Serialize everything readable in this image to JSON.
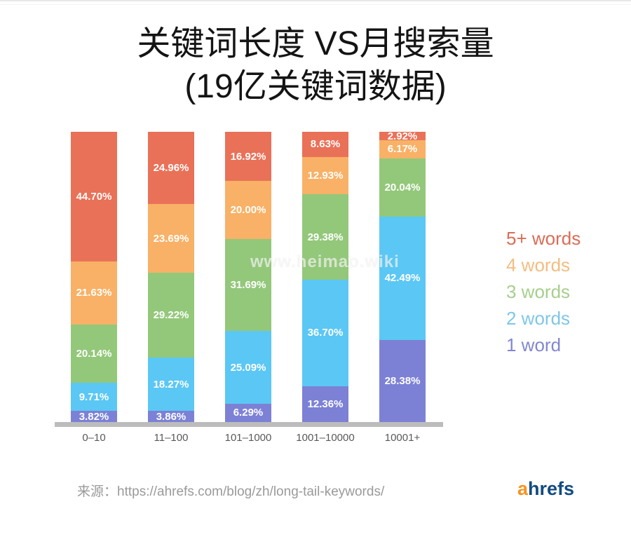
{
  "page": {
    "title_line1": "关键词长度 VS月搜索量",
    "title_line2": "(19亿关键词数据)",
    "watermark_text": "www.heimao.wiki",
    "source_text": "来源：https://ahrefs.com/blog/zh/long-tail-keywords/",
    "logo": {
      "first": "a",
      "rest": "hrefs",
      "first_color": "#f7941e",
      "rest_color": "#134b80"
    }
  },
  "chart_data": {
    "type": "bar",
    "stacked": true,
    "title": "关键词长度 VS月搜索量 (19亿关键词数据)",
    "xlabel": "",
    "ylabel": "",
    "ylim": [
      0,
      100
    ],
    "value_suffix": "%",
    "grid": false,
    "legend_position": "right",
    "categories": [
      "0–10",
      "11–100",
      "101–1000",
      "1001–10000",
      "10001+"
    ],
    "series": [
      {
        "name": "1 word",
        "color": "#7c81d6",
        "values": [
          3.82,
          3.86,
          6.29,
          12.36,
          28.38
        ]
      },
      {
        "name": "2 words",
        "color": "#5bc7f4",
        "values": [
          9.71,
          18.27,
          25.09,
          36.7,
          42.49
        ]
      },
      {
        "name": "3 words",
        "color": "#93c87a",
        "values": [
          20.14,
          29.22,
          31.69,
          29.38,
          20.04
        ]
      },
      {
        "name": "4 words",
        "color": "#f8b166",
        "values": [
          21.63,
          23.69,
          20.0,
          12.93,
          6.17
        ]
      },
      {
        "name": "5+ words",
        "color": "#e97158",
        "values": [
          44.7,
          24.96,
          16.92,
          8.63,
          2.92
        ]
      }
    ],
    "legend_items": [
      {
        "label": "5+ words",
        "color": "#db6c57"
      },
      {
        "label": "4 words",
        "color": "#f3bd81"
      },
      {
        "label": "3 words",
        "color": "#a6cf8c"
      },
      {
        "label": "2 words",
        "color": "#7fc6e9"
      },
      {
        "label": "1 word",
        "color": "#8287cf"
      }
    ],
    "axis_line_color": "#bcbcbc"
  }
}
